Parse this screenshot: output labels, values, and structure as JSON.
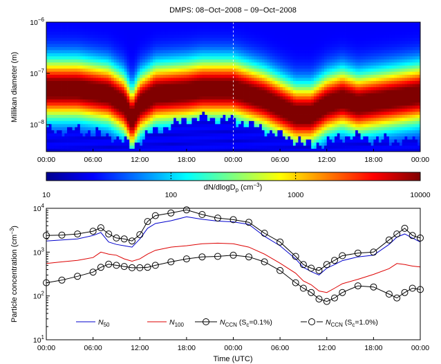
{
  "chart_data": [
    {
      "type": "heatmap",
      "title": "DMPS: 08−Oct−2008 − 09−Oct−2008",
      "ylabel": "Millikan diameter (m)",
      "y_scale": "log",
      "ylim": [
        3e-09,
        1e-06
      ],
      "y_ticks": [
        {
          "value": 1e-06,
          "base": "10",
          "exp": "−6"
        },
        {
          "value": 1e-07,
          "base": "10",
          "exp": "−7"
        },
        {
          "value": 1e-08,
          "base": "10",
          "exp": "−8"
        }
      ],
      "x_tick_labels": [
        "00:00",
        "06:00",
        "12:00",
        "18:00",
        "00:00",
        "06:00",
        "12:00",
        "18:00",
        "00:00"
      ],
      "xlim_hours": [
        0,
        48
      ],
      "colorbar": {
        "scale": "log",
        "range": [
          10,
          10000
        ],
        "tick_labels": [
          "10",
          "100",
          "1000",
          "10000"
        ],
        "label": "dN/dlogD",
        "label_sub": "p",
        "label_unit": "(cm",
        "label_unit_exp": "−3",
        "label_unit_close": ")"
      },
      "description_bands": {
        "time_hours": [
          0,
          4,
          8,
          10,
          11,
          12,
          14,
          18,
          20,
          24,
          28,
          32,
          34,
          36,
          38,
          40,
          44,
          48
        ],
        "peak_log10_diameter": [
          -7.3,
          -7.3,
          -7.4,
          -7.6,
          -7.9,
          -7.6,
          -7.4,
          -7.35,
          -7.3,
          -7.3,
          -7.5,
          -7.8,
          -7.8,
          -7.6,
          -7.5,
          -7.6,
          -7.5,
          -7.4
        ],
        "lower_cut_log10_diameter": [
          -8.1,
          -8.1,
          -8.2,
          -8.3,
          -8.45,
          -8.3,
          -8.1,
          -7.9,
          -7.85,
          -7.9,
          -8.1,
          -8.3,
          -8.4,
          -8.35,
          -8.2,
          -8.25,
          -8.3,
          -8.3
        ]
      }
    },
    {
      "type": "line",
      "ylabel": "Particle concentration (cm",
      "ylabel_exp": "−3",
      "ylabel_close": ")",
      "xlabel": "Time (UTC)",
      "y_scale": "log",
      "ylim": [
        10,
        10000
      ],
      "y_ticks": [
        {
          "value": 10,
          "base": "10",
          "exp": "1"
        },
        {
          "value": 100,
          "base": "10",
          "exp": "2"
        },
        {
          "value": 1000,
          "base": "10",
          "exp": "3"
        },
        {
          "value": 10000,
          "base": "10",
          "exp": "4"
        }
      ],
      "x_tick_labels": [
        "00:00",
        "06:00",
        "12:00",
        "18:00",
        "00:00",
        "06:00",
        "12:00",
        "18:00",
        "00:00"
      ],
      "xlim_hours": [
        0,
        48
      ],
      "x_hours": [
        0,
        2,
        4,
        6,
        7,
        8,
        9,
        10,
        11,
        12,
        13,
        14,
        16,
        18,
        20,
        22,
        24,
        26,
        28,
        30,
        32,
        33,
        34,
        35,
        36,
        37,
        38,
        40,
        42,
        44,
        45,
        46,
        47,
        48
      ],
      "series": [
        {
          "name": "N",
          "name_sub": "50",
          "color": "#0000cc",
          "marker": "none",
          "values": [
            1800,
            1900,
            2000,
            2400,
            2800,
            1700,
            1500,
            1400,
            1300,
            2000,
            3500,
            4500,
            5200,
            6400,
            5600,
            5100,
            4900,
            4300,
            2300,
            1400,
            700,
            450,
            360,
            300,
            430,
            520,
            640,
            780,
            850,
            1500,
            2200,
            2600,
            2100,
            1700
          ]
        },
        {
          "name": "N",
          "name_sub": "100",
          "color": "#dd0000",
          "marker": "none",
          "values": [
            550,
            600,
            650,
            750,
            1000,
            900,
            850,
            700,
            620,
            700,
            900,
            1100,
            1300,
            1400,
            1550,
            1600,
            1550,
            1300,
            900,
            560,
            330,
            220,
            180,
            130,
            120,
            150,
            190,
            240,
            310,
            420,
            550,
            520,
            480,
            460
          ]
        },
        {
          "name": "N",
          "name_sub": "CCN",
          "name_suffix": " (S",
          "name_suffix_sub": "c",
          "name_suffix_end": "=0.1%)",
          "color": "#000000",
          "marker": "circle",
          "values": [
            200,
            230,
            280,
            350,
            450,
            530,
            500,
            470,
            440,
            440,
            450,
            500,
            600,
            700,
            780,
            800,
            850,
            780,
            600,
            380,
            200,
            150,
            120,
            85,
            75,
            90,
            120,
            170,
            160,
            110,
            90,
            120,
            150,
            140
          ]
        },
        {
          "name": "N",
          "name_sub": "CCN",
          "name_suffix": " (S",
          "name_suffix_sub": "c",
          "name_suffix_end": "=1.0%)",
          "color": "#000000",
          "marker": "circle",
          "values": [
            2400,
            2450,
            2600,
            3000,
            3600,
            2600,
            2100,
            2000,
            1800,
            2500,
            5000,
            6800,
            7800,
            9200,
            7200,
            6000,
            5500,
            4800,
            2700,
            1700,
            800,
            520,
            430,
            380,
            520,
            650,
            830,
            950,
            1000,
            1900,
            2600,
            3500,
            2400,
            2100
          ]
        }
      ],
      "legend_position": "lower-right"
    }
  ]
}
